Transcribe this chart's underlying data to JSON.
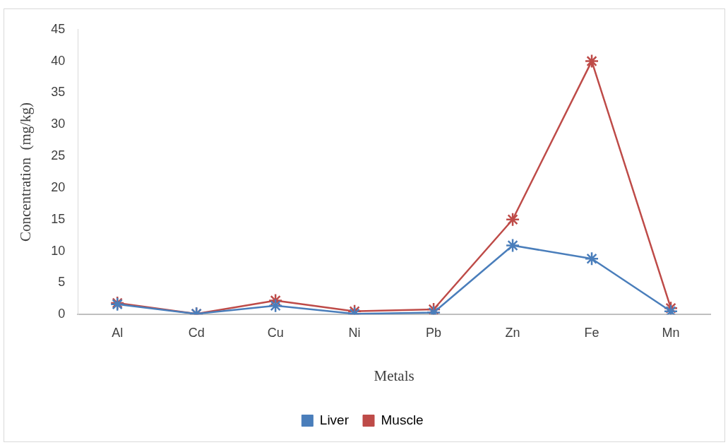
{
  "chart_data": {
    "type": "line",
    "xlabel": "Metals",
    "ylabel": "Concentration  (mg/kg)",
    "categories": [
      "Al",
      "Cd",
      "Cu",
      "Ni",
      "Pb",
      "Zn",
      "Fe",
      "Mn"
    ],
    "series": [
      {
        "name": "Liver",
        "color": "#4a7ebb",
        "values": [
          1.6,
          0.1,
          1.4,
          0.1,
          0.3,
          10.9,
          8.8,
          0.5
        ]
      },
      {
        "name": "Muscle",
        "color": "#be4b48",
        "values": [
          1.8,
          0.1,
          2.2,
          0.5,
          0.8,
          15,
          40,
          1.0
        ]
      }
    ],
    "ylim": [
      0,
      45
    ],
    "yticks": [
      0,
      5,
      10,
      15,
      20,
      25,
      30,
      35,
      40,
      45
    ],
    "grid": false,
    "legend": "bottom",
    "marker": "cross",
    "line_style": "solid"
  }
}
